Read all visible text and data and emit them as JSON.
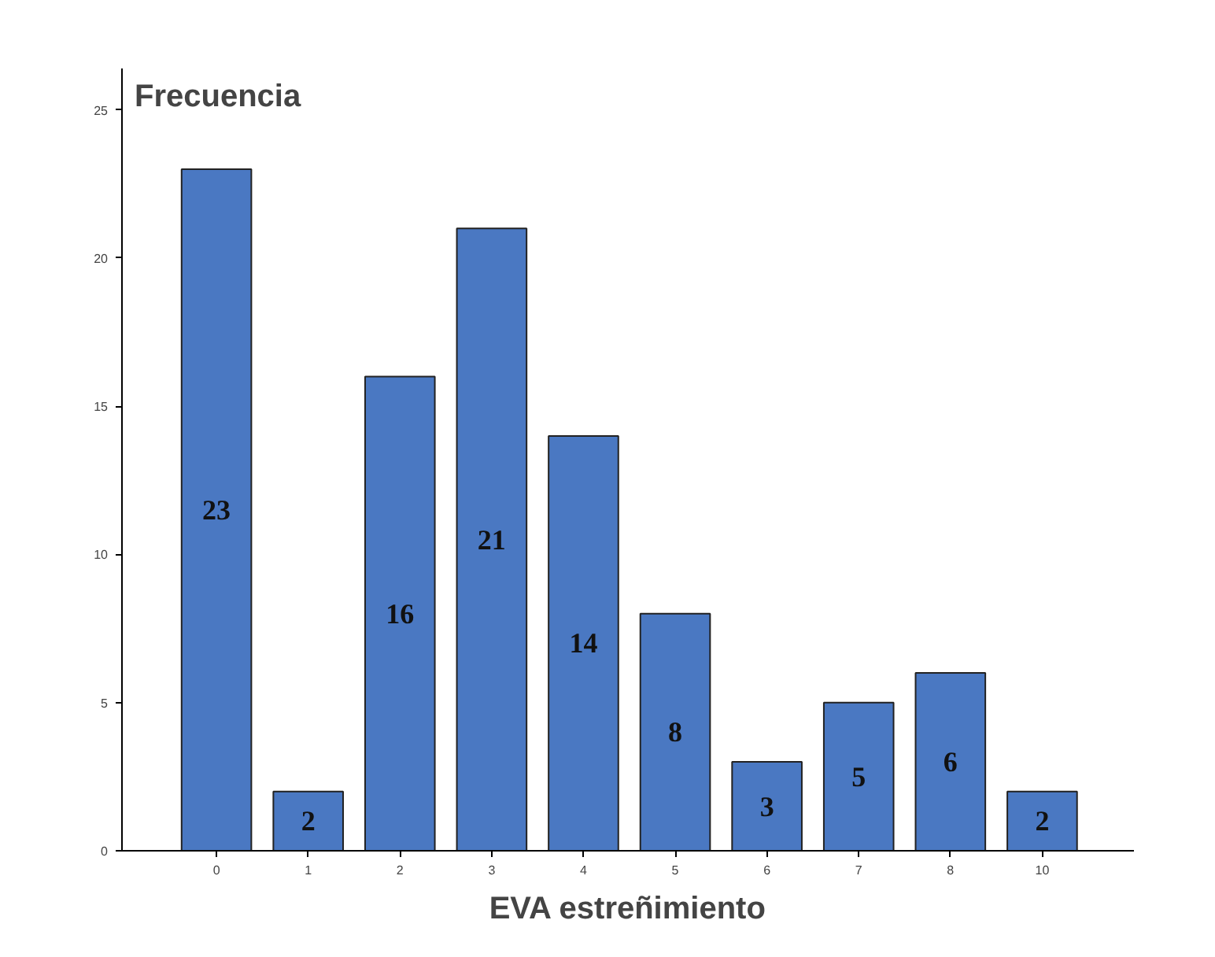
{
  "chart_data": {
    "type": "bar",
    "xlabel": "EVA estreñimiento",
    "ylabel": "Frecuencia",
    "categories": [
      "0",
      "1",
      "2",
      "3",
      "4",
      "5",
      "6",
      "7",
      "8",
      "10"
    ],
    "values": [
      23,
      2,
      16,
      21,
      14,
      8,
      3,
      5,
      6,
      2
    ],
    "color": "#4a78c2",
    "ylim": [
      0,
      26.4
    ],
    "yticks": [
      0,
      5,
      10,
      15,
      20,
      25
    ],
    "grid": false,
    "data_labels": true
  }
}
